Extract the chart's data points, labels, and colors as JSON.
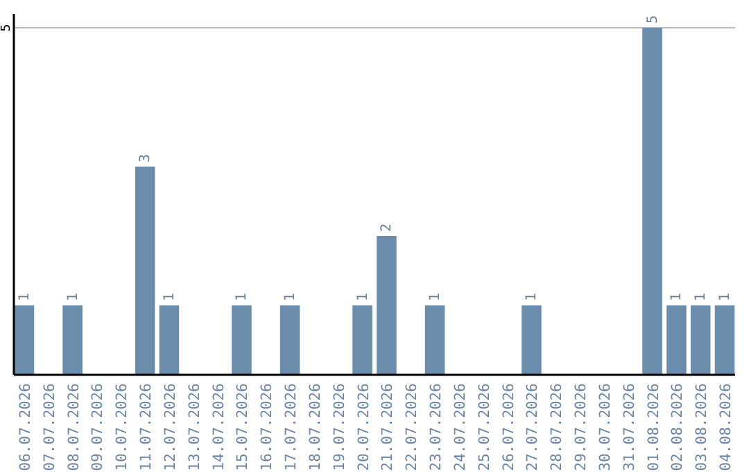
{
  "chart_data": {
    "type": "bar",
    "categories": [
      "06.07.2026",
      "07.07.2026",
      "08.07.2026",
      "09.07.2026",
      "10.07.2026",
      "11.07.2026",
      "12.07.2026",
      "13.07.2026",
      "14.07.2026",
      "15.07.2026",
      "16.07.2026",
      "17.07.2026",
      "18.07.2026",
      "19.07.2026",
      "20.07.2026",
      "21.07.2026",
      "22.07.2026",
      "23.07.2026",
      "24.07.2026",
      "25.07.2026",
      "26.07.2026",
      "27.07.2026",
      "28.07.2026",
      "29.07.2026",
      "30.07.2026",
      "31.07.2026",
      "01.08.2026",
      "02.08.2026",
      "03.08.2026",
      "04.08.2026"
    ],
    "values": [
      1,
      null,
      1,
      null,
      null,
      3,
      1,
      null,
      null,
      1,
      null,
      1,
      null,
      null,
      1,
      2,
      null,
      1,
      null,
      null,
      null,
      1,
      null,
      null,
      null,
      null,
      5,
      1,
      1,
      1
    ],
    "color": "#6b8cab",
    "ylim": [
      0,
      5
    ],
    "yticks": [
      5
    ],
    "ref_lines": [
      {
        "axis": "y",
        "value": 5,
        "color": "#bbbbbb"
      }
    ],
    "data_labels": true
  }
}
